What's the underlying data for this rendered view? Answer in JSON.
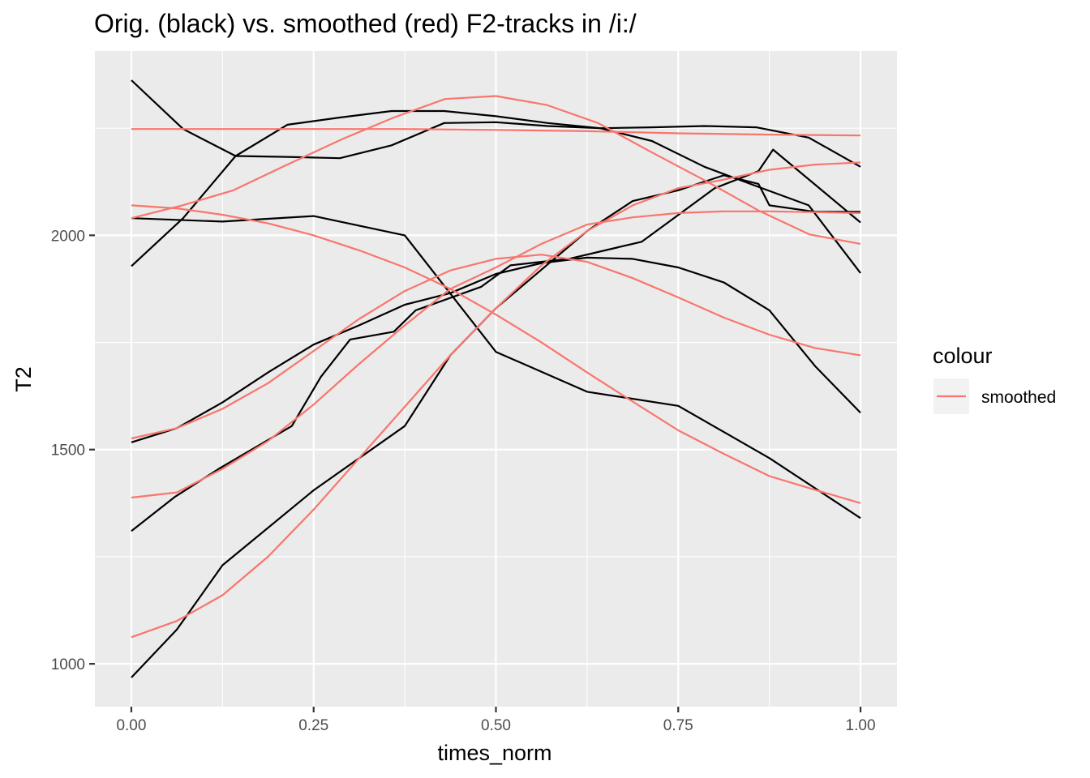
{
  "chart_data": {
    "type": "line",
    "title": "Orig. (black) vs. smoothed (red) F2-tracks in /i:/",
    "xlabel": "times_norm",
    "ylabel": "T2",
    "xlim": [
      -0.05,
      1.05
    ],
    "ylim": [
      900,
      2430
    ],
    "x_ticks": [
      0,
      0.25,
      0.5,
      0.75,
      1
    ],
    "x_tick_labels": [
      "0.00",
      "0.25",
      "0.50",
      "0.75",
      "1.00"
    ],
    "y_ticks": [
      1000,
      1500,
      2000
    ],
    "y_tick_labels": [
      "1000",
      "1500",
      "2000"
    ],
    "grid": true,
    "legend": {
      "title": "colour",
      "position": "right",
      "entries": [
        {
          "label": "smoothed",
          "color": "#F8766D"
        }
      ]
    },
    "colors": {
      "original": "#000000",
      "smoothed": "#F8766D",
      "panel": "#EBEBEB",
      "grid": "#FFFFFF"
    },
    "series": [
      {
        "group": "original",
        "x": [
          0,
          0.071,
          0.143,
          0.214,
          0.286,
          0.357,
          0.429,
          0.5,
          0.571,
          0.643,
          0.714,
          0.786,
          0.857,
          0.929,
          1.0
        ],
        "y": [
          2362,
          2248,
          2185,
          2183,
          2180,
          2210,
          2262,
          2264,
          2255,
          2250,
          2220,
          2160,
          2115,
          2070,
          1912
        ]
      },
      {
        "group": "original",
        "x": [
          0,
          0.071,
          0.143,
          0.214,
          0.286,
          0.357,
          0.429,
          0.5,
          0.571,
          0.643,
          0.714,
          0.786,
          0.857,
          0.929,
          1.0
        ],
        "y": [
          1928,
          2040,
          2185,
          2258,
          2275,
          2290,
          2290,
          2278,
          2262,
          2250,
          2252,
          2255,
          2252,
          2228,
          2160
        ]
      },
      {
        "group": "original",
        "x": [
          0,
          0.125,
          0.25,
          0.375,
          0.5,
          0.625,
          0.75,
          0.875,
          1.0
        ],
        "y": [
          2040,
          2032,
          2045,
          2000,
          1728,
          1635,
          1602,
          1480,
          1340
        ]
      },
      {
        "group": "original",
        "x": [
          0,
          0.0625,
          0.125,
          0.1875,
          0.25,
          0.3125,
          0.375,
          0.4375,
          0.5,
          0.5625,
          0.625,
          0.6875,
          0.75,
          0.8125,
          0.875,
          0.9375,
          1.0
        ],
        "y": [
          1517,
          1550,
          1610,
          1680,
          1745,
          1790,
          1838,
          1865,
          1910,
          1935,
          1948,
          1945,
          1925,
          1890,
          1825,
          1695,
          1586
        ]
      },
      {
        "group": "original",
        "x": [
          0,
          0.06,
          0.12,
          0.18,
          0.22,
          0.26,
          0.3,
          0.36,
          0.39,
          0.48,
          0.52,
          0.6,
          0.7,
          0.74,
          0.8,
          0.86,
          0.88,
          1.0
        ],
        "y": [
          1310,
          1390,
          1455,
          1515,
          1555,
          1670,
          1757,
          1775,
          1825,
          1880,
          1930,
          1945,
          1985,
          2035,
          2110,
          2150,
          2200,
          2030
        ]
      },
      {
        "group": "original",
        "x": [
          0,
          0.0625,
          0.125,
          0.25,
          0.375,
          0.4375,
          0.5,
          0.5625,
          0.625,
          0.6875,
          0.75,
          0.8125,
          0.86,
          0.875,
          0.9375,
          1.0
        ],
        "y": [
          968,
          1080,
          1230,
          1405,
          1555,
          1720,
          1830,
          1920,
          2010,
          2080,
          2105,
          2140,
          2120,
          2070,
          2055,
          2055
        ]
      },
      {
        "group": "smoothed",
        "x": [
          0,
          0.0625,
          0.125,
          0.25,
          0.375,
          0.5,
          0.625,
          0.75,
          0.875,
          1.0
        ],
        "y": [
          2248,
          2248,
          2248,
          2248,
          2248,
          2246,
          2243,
          2238,
          2235,
          2233
        ]
      },
      {
        "group": "smoothed",
        "x": [
          0,
          0.07,
          0.14,
          0.21,
          0.29,
          0.36,
          0.43,
          0.5,
          0.57,
          0.64,
          0.71,
          0.79,
          0.86,
          0.93,
          1.0
        ],
        "y": [
          2040,
          2070,
          2105,
          2162,
          2225,
          2275,
          2318,
          2325,
          2304,
          2262,
          2197,
          2125,
          2058,
          2002,
          1980
        ]
      },
      {
        "group": "smoothed",
        "x": [
          0,
          0.0625,
          0.125,
          0.1875,
          0.25,
          0.3125,
          0.375,
          0.4375,
          0.5,
          0.5625,
          0.625,
          0.6875,
          0.75,
          0.8125,
          0.875,
          0.9375,
          1.0
        ],
        "y": [
          2070,
          2063,
          2048,
          2028,
          2000,
          1965,
          1925,
          1875,
          1815,
          1750,
          1680,
          1612,
          1545,
          1490,
          1438,
          1406,
          1375
        ]
      },
      {
        "group": "smoothed",
        "x": [
          0,
          0.0625,
          0.125,
          0.1875,
          0.25,
          0.3125,
          0.375,
          0.4375,
          0.5,
          0.5625,
          0.625,
          0.6875,
          0.75,
          0.8125,
          0.875,
          0.9375,
          1.0
        ],
        "y": [
          1526,
          1550,
          1595,
          1655,
          1730,
          1805,
          1870,
          1918,
          1945,
          1955,
          1938,
          1900,
          1855,
          1808,
          1768,
          1737,
          1720
        ]
      },
      {
        "group": "smoothed",
        "x": [
          0,
          0.0625,
          0.125,
          0.1875,
          0.25,
          0.3125,
          0.375,
          0.4375,
          0.5,
          0.5625,
          0.625,
          0.6875,
          0.75,
          0.8125,
          0.875,
          0.9375,
          1.0
        ],
        "y": [
          1388,
          1400,
          1455,
          1520,
          1605,
          1700,
          1790,
          1875,
          1925,
          1980,
          2025,
          2042,
          2052,
          2056,
          2056,
          2054,
          2052
        ]
      },
      {
        "group": "smoothed",
        "x": [
          0,
          0.0625,
          0.125,
          0.1875,
          0.25,
          0.3125,
          0.375,
          0.4375,
          0.5,
          0.5625,
          0.625,
          0.6875,
          0.75,
          0.8125,
          0.875,
          0.9375,
          1.0
        ],
        "y": [
          1062,
          1100,
          1160,
          1250,
          1360,
          1480,
          1600,
          1720,
          1830,
          1930,
          2010,
          2070,
          2110,
          2130,
          2153,
          2165,
          2170
        ]
      }
    ]
  }
}
